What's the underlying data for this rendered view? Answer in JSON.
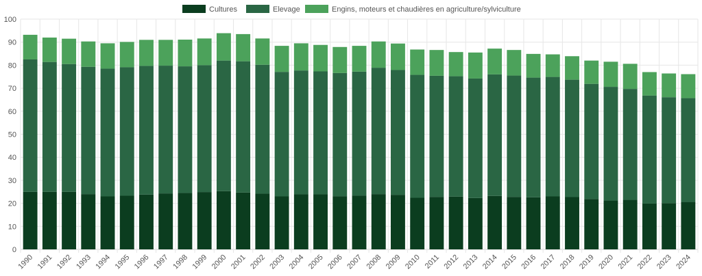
{
  "chart_data": {
    "type": "bar",
    "stacked": true,
    "title": "",
    "xlabel": "",
    "ylabel": "",
    "ylim": [
      0,
      100
    ],
    "yticks": [
      0,
      10,
      20,
      30,
      40,
      50,
      60,
      70,
      80,
      90,
      100
    ],
    "grid": true,
    "legend_position": "top",
    "categories": [
      "1990",
      "1991",
      "1992",
      "1993",
      "1994",
      "1995",
      "1996",
      "1997",
      "1998",
      "1999",
      "2000",
      "2001",
      "2002",
      "2003",
      "2004",
      "2005",
      "2006",
      "2007",
      "2008",
      "2009",
      "2010",
      "2011",
      "2012",
      "2013",
      "2014",
      "2015",
      "2016",
      "2017",
      "2018",
      "2019",
      "2020",
      "2021",
      "2022",
      "2023",
      "2024"
    ],
    "series": [
      {
        "name": "Cultures",
        "color": "#0b3d1f",
        "values": [
          25.0,
          25.0,
          25.0,
          24.0,
          23.0,
          23.3,
          23.8,
          24.3,
          24.5,
          24.9,
          25.3,
          24.7,
          24.2,
          23.0,
          23.9,
          23.9,
          23.1,
          23.4,
          24.0,
          23.7,
          22.4,
          22.8,
          22.9,
          22.3,
          23.2,
          22.8,
          22.6,
          23.0,
          22.7,
          21.9,
          21.2,
          21.5,
          19.9,
          20.1,
          20.6
        ]
      },
      {
        "name": "Elevage",
        "color": "#2a6644",
        "values": [
          57.5,
          56.4,
          55.5,
          55.3,
          55.5,
          55.8,
          55.9,
          55.5,
          55.0,
          55.1,
          56.7,
          57.0,
          56.0,
          54.1,
          53.8,
          53.4,
          53.5,
          53.8,
          54.9,
          54.2,
          53.4,
          52.6,
          52.3,
          51.9,
          52.8,
          52.7,
          52.0,
          51.9,
          51.0,
          50.0,
          49.4,
          48.2,
          46.9,
          46.0,
          45.1
        ]
      },
      {
        "name": "Engins, moteurs et chaudières en agriculture/sylviculture",
        "color": "#4ca25b",
        "values": [
          10.7,
          10.6,
          11.0,
          11.0,
          11.0,
          11.0,
          11.3,
          11.2,
          11.6,
          11.6,
          11.9,
          11.8,
          11.4,
          11.3,
          11.8,
          11.5,
          11.3,
          11.2,
          11.4,
          11.5,
          11.0,
          11.2,
          10.5,
          11.3,
          11.2,
          11.1,
          10.3,
          9.8,
          10.2,
          10.1,
          10.9,
          10.9,
          10.2,
          10.3,
          10.4
        ]
      }
    ]
  }
}
